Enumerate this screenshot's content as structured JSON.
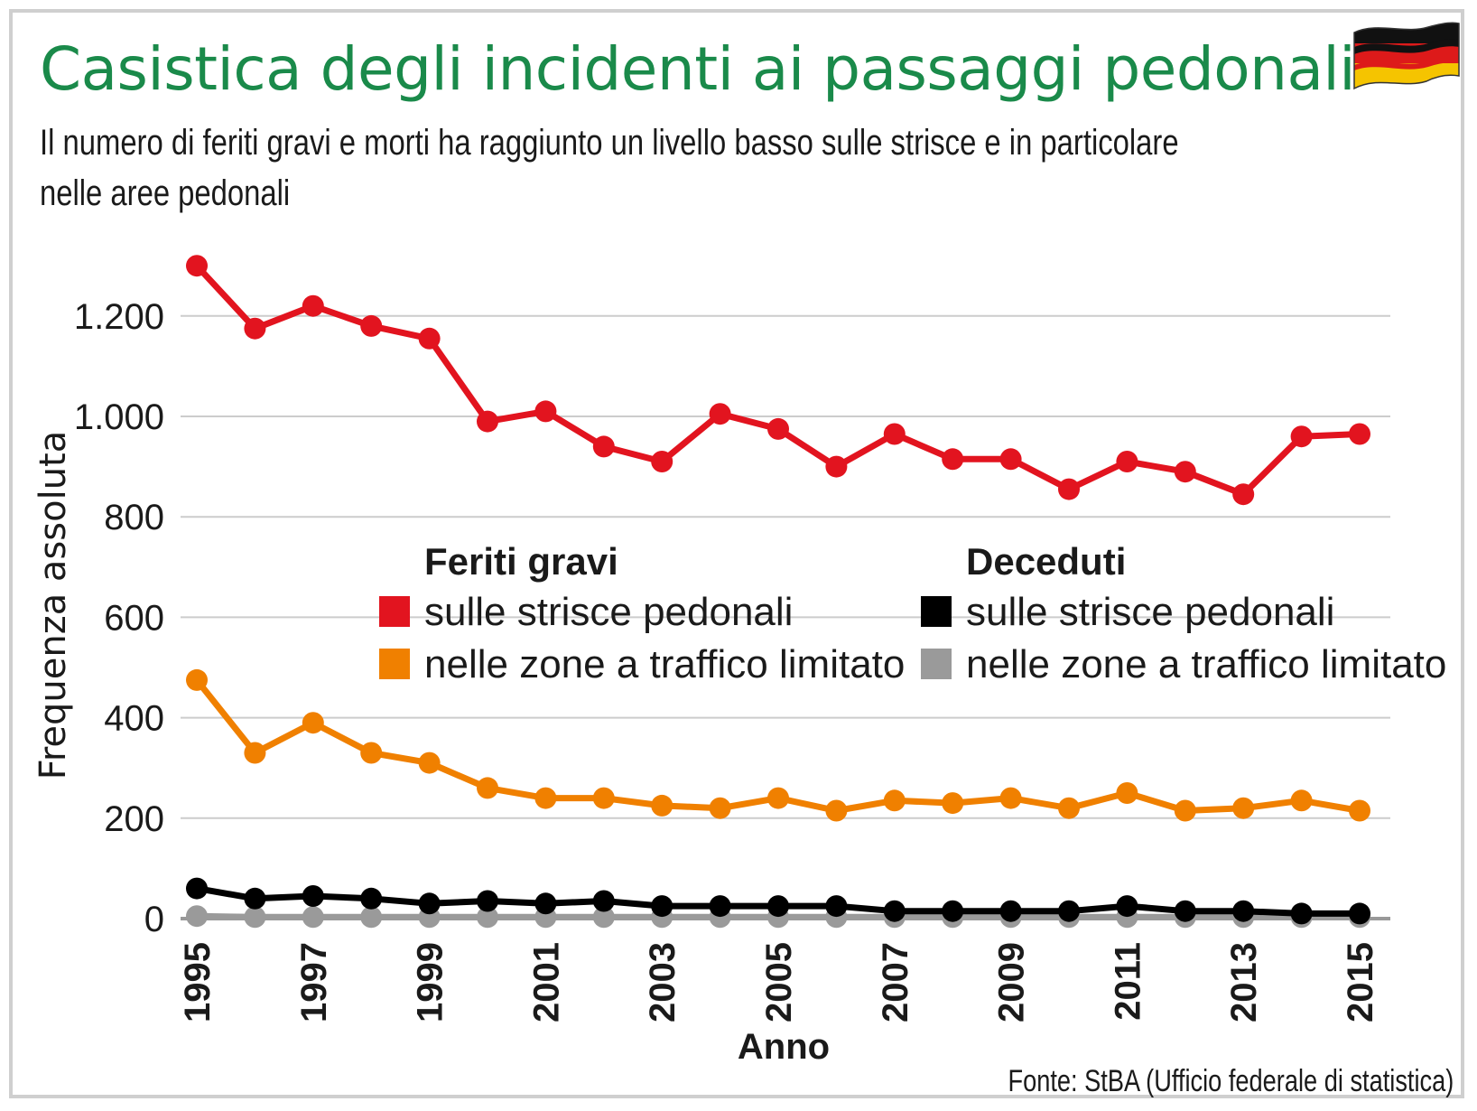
{
  "title": "Casistica degli incidenti ai passaggi pedonali",
  "subtitle_line1": "Il numero di feriti gravi e morti ha raggiunto un livello basso sulle strisce e in particolare",
  "subtitle_line2": "nelle aree pedonali",
  "source": "Fonte: StBA (Ufficio federale di statistica)",
  "flag_icon": "germany-flag-icon",
  "colors": {
    "title": "#1a8a4a",
    "red": "#e2141f",
    "orange": "#f08000",
    "black": "#000000",
    "gray": "#9a9a9a",
    "grid": "#cccccc"
  },
  "chart_data": {
    "type": "line",
    "title": "Casistica degli incidenti ai passaggi pedonali",
    "xlabel": "Anno",
    "ylabel": "Frequenza assoluta",
    "ylim": [
      0,
      1300
    ],
    "yticks": [
      0,
      200,
      400,
      600,
      800,
      1000,
      1200
    ],
    "ytick_labels": [
      "0",
      "200",
      "400",
      "600",
      "800",
      "1.000",
      "1.200"
    ],
    "x": [
      1995,
      1996,
      1997,
      1998,
      1999,
      2000,
      2001,
      2002,
      2003,
      2004,
      2005,
      2006,
      2007,
      2008,
      2009,
      2010,
      2011,
      2012,
      2013,
      2014,
      2015
    ],
    "xtick_labels": [
      "1995",
      "1997",
      "1999",
      "2001",
      "2003",
      "2005",
      "2007",
      "2009",
      "2011",
      "2013",
      "2015"
    ],
    "grid": true,
    "legend": {
      "group1_title": "Feriti gravi",
      "group2_title": "Deceduti",
      "placement": "center"
    },
    "series": [
      {
        "name": "sulle strisce pedonali",
        "group": "Feriti gravi",
        "color": "red",
        "values": [
          1300,
          1175,
          1220,
          1180,
          1155,
          990,
          1010,
          940,
          910,
          1005,
          975,
          900,
          965,
          915,
          915,
          855,
          910,
          890,
          845,
          960,
          965
        ]
      },
      {
        "name": "nelle zone a traffico limitato",
        "group": "Feriti gravi",
        "color": "orange",
        "values": [
          475,
          330,
          390,
          330,
          310,
          260,
          240,
          240,
          225,
          220,
          240,
          215,
          235,
          230,
          240,
          220,
          250,
          215,
          220,
          235,
          215
        ]
      },
      {
        "name": "sulle strisce pedonali",
        "group": "Deceduti",
        "color": "black",
        "values": [
          60,
          40,
          45,
          40,
          30,
          35,
          30,
          35,
          25,
          25,
          25,
          25,
          15,
          15,
          15,
          15,
          25,
          15,
          15,
          10,
          10
        ]
      },
      {
        "name": "nelle zone a traffico limitato",
        "group": "Deceduti",
        "color": "gray",
        "values": [
          5,
          3,
          3,
          3,
          3,
          3,
          3,
          3,
          3,
          3,
          3,
          3,
          3,
          3,
          3,
          3,
          3,
          3,
          3,
          3,
          3
        ]
      }
    ]
  }
}
